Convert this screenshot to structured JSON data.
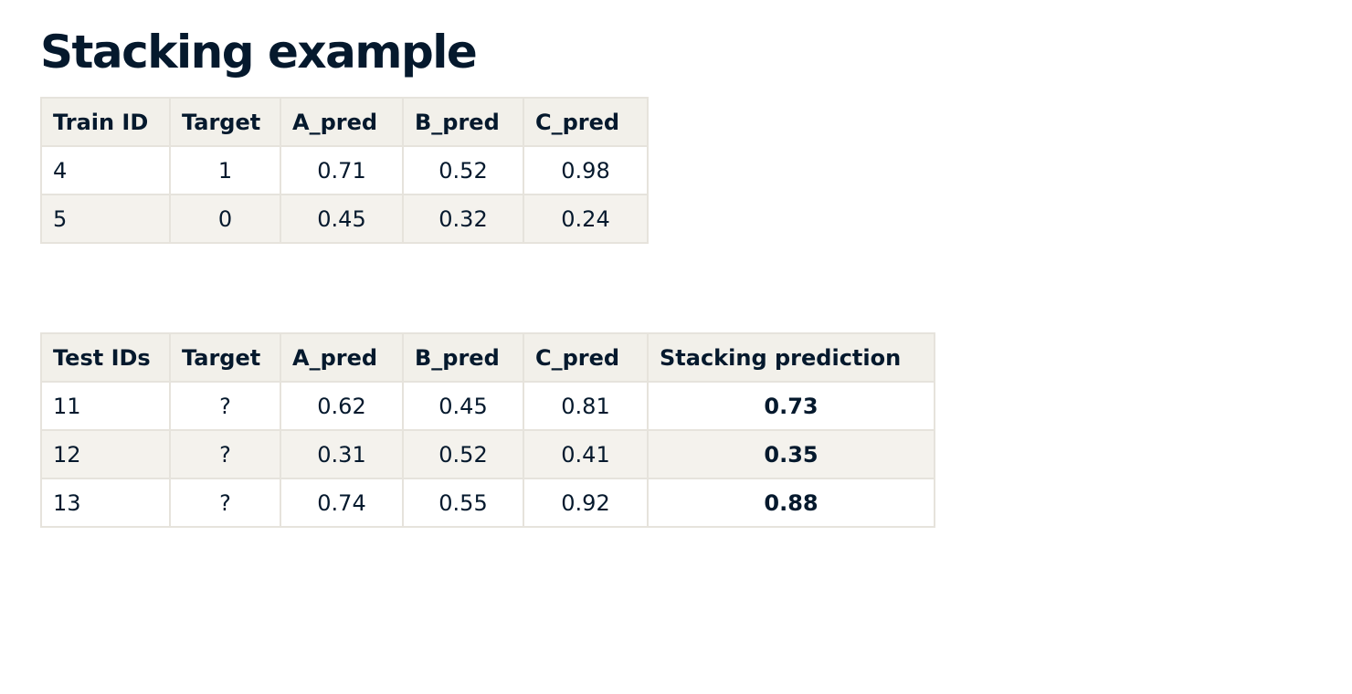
{
  "title": "Stacking example",
  "train_table": {
    "headers": [
      "Train ID",
      "Target",
      "A_pred",
      "B_pred",
      "C_pred"
    ],
    "rows": [
      [
        "4",
        "1",
        "0.71",
        "0.52",
        "0.98"
      ],
      [
        "5",
        "0",
        "0.45",
        "0.32",
        "0.24"
      ]
    ]
  },
  "test_table": {
    "headers": [
      "Test IDs",
      "Target",
      "A_pred",
      "B_pred",
      "C_pred",
      "Stacking prediction"
    ],
    "rows": [
      [
        "11",
        "?",
        "0.62",
        "0.45",
        "0.81",
        "0.73"
      ],
      [
        "12",
        "?",
        "0.31",
        "0.52",
        "0.41",
        "0.35"
      ],
      [
        "13",
        "?",
        "0.74",
        "0.55",
        "0.92",
        "0.88"
      ]
    ]
  }
}
